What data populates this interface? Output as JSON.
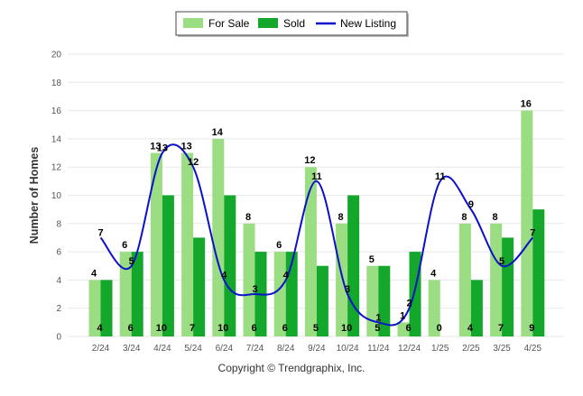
{
  "colors": {
    "for_sale": "#9bdd82",
    "sold": "#13a72b",
    "new_listing": "#0a10cc",
    "grid": "#e8e8e8",
    "axis_text": "#555555"
  },
  "legend": {
    "for_sale": "For Sale",
    "sold": "Sold",
    "new_listing": "New Listing"
  },
  "footer": {
    "copyright": "Copyright © Trendgraphix, Inc."
  },
  "chart_data": {
    "type": "bar",
    "ylabel": "Number of Homes",
    "xlabel": "",
    "ylim": [
      0,
      20
    ],
    "yticks": [
      0,
      2,
      4,
      6,
      8,
      10,
      12,
      14,
      16,
      18,
      20
    ],
    "grid": true,
    "legend_position": "top-center",
    "categories": [
      "2/24",
      "3/24",
      "4/24",
      "5/24",
      "6/24",
      "7/24",
      "8/24",
      "9/24",
      "10/24",
      "11/24",
      "12/24",
      "1/25",
      "2/25",
      "3/25",
      "4/25"
    ],
    "series": [
      {
        "name": "For Sale",
        "type": "bar",
        "values": [
          4,
          6,
          13,
          13,
          14,
          8,
          6,
          12,
          8,
          5,
          1,
          4,
          8,
          8,
          16
        ]
      },
      {
        "name": "Sold",
        "type": "bar",
        "values": [
          4,
          6,
          10,
          7,
          10,
          6,
          6,
          5,
          10,
          5,
          6,
          0,
          4,
          7,
          9
        ]
      },
      {
        "name": "New Listing",
        "type": "line",
        "values": [
          7,
          5,
          13,
          12,
          4,
          3,
          4,
          11,
          3,
          1,
          2,
          11,
          9,
          5,
          7
        ]
      }
    ]
  }
}
